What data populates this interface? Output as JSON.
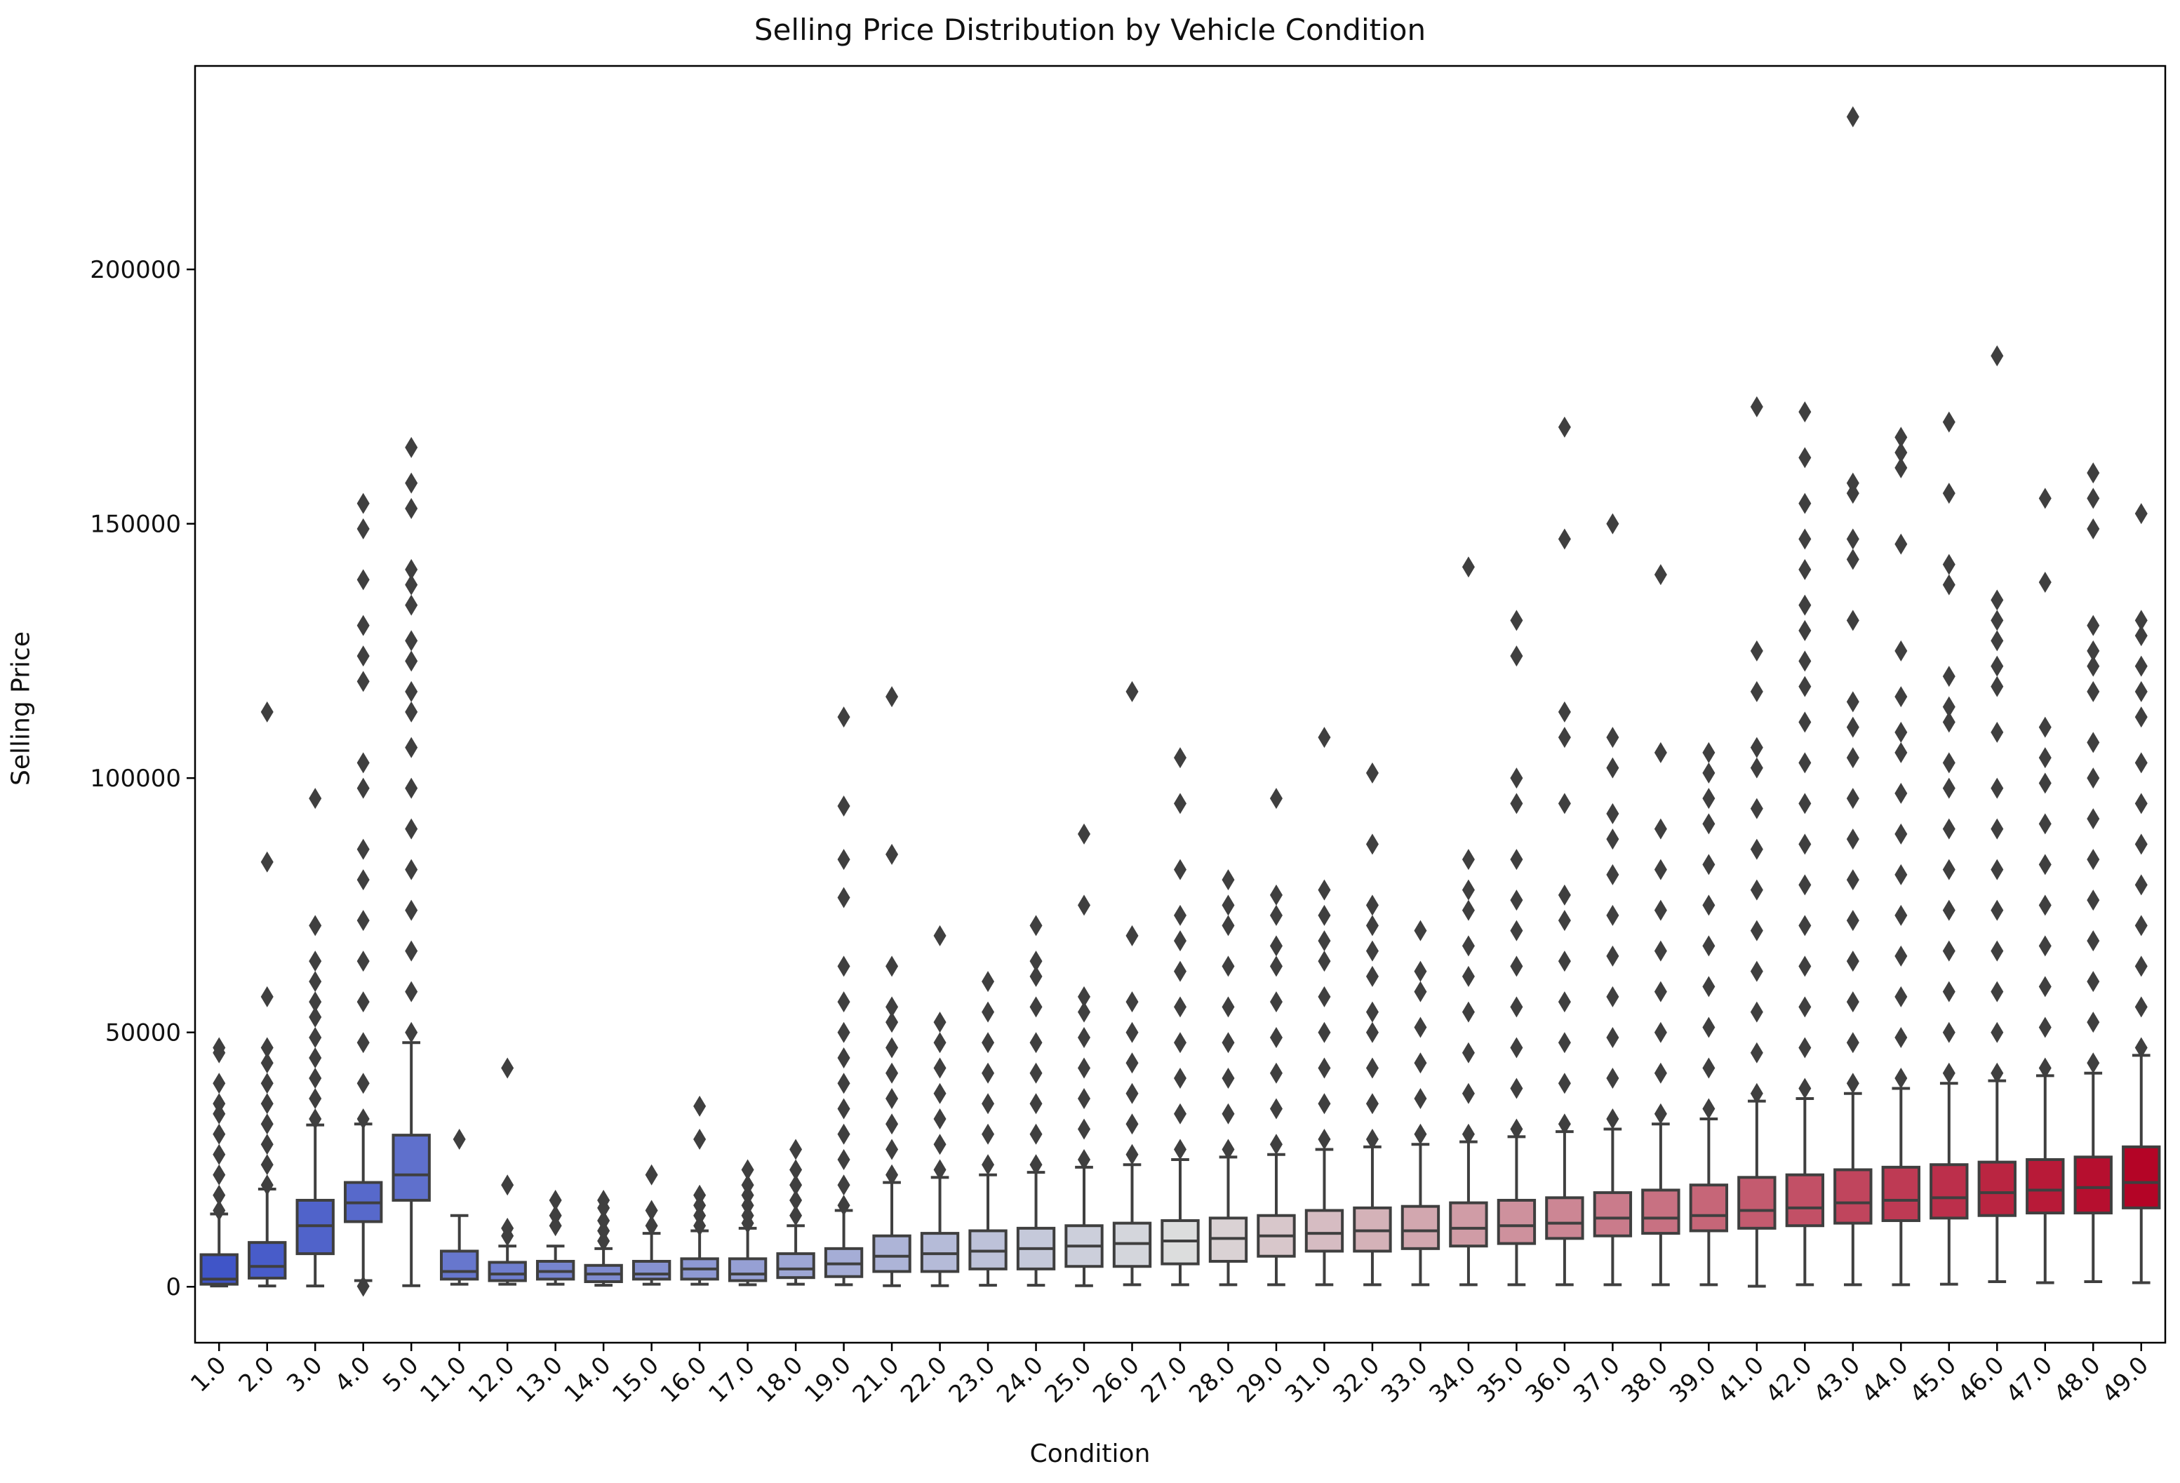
{
  "chart_data": {
    "type": "box",
    "title": "Selling Price Distribution by Vehicle Condition",
    "xlabel": "Condition",
    "ylabel": "Selling Price",
    "ylim": [
      -11000,
      240000
    ],
    "yticks": [
      0,
      50000,
      100000,
      150000,
      200000
    ],
    "ytick_labels": [
      "0",
      "50000",
      "100000",
      "150000",
      "200000"
    ],
    "grid": false,
    "palette": "coolwarm",
    "colors": {
      "low": "#4055c8",
      "mid": "#dcdddd",
      "high": "#b40426",
      "box_edge": "#3f3f3f"
    },
    "categories": [
      "1.0",
      "2.0",
      "3.0",
      "4.0",
      "5.0",
      "11.0",
      "12.0",
      "13.0",
      "14.0",
      "15.0",
      "16.0",
      "17.0",
      "18.0",
      "19.0",
      "21.0",
      "22.0",
      "23.0",
      "24.0",
      "25.0",
      "26.0",
      "27.0",
      "28.0",
      "29.0",
      "31.0",
      "32.0",
      "33.0",
      "34.0",
      "35.0",
      "36.0",
      "37.0",
      "38.0",
      "39.0",
      "41.0",
      "42.0",
      "43.0",
      "44.0",
      "45.0",
      "46.0",
      "47.0",
      "48.0",
      "49.0"
    ],
    "boxes": [
      {
        "q1": 500,
        "median": 1500,
        "q3": 6300,
        "whisker_low": 150,
        "whisker_high": 14300,
        "outliers": [
          15000,
          18000,
          22000,
          26000,
          30000,
          34000,
          36000,
          40000,
          46000,
          47000
        ]
      },
      {
        "q1": 1700,
        "median": 4000,
        "q3": 8700,
        "whisker_low": 150,
        "whisker_high": 19200,
        "outliers": [
          20000,
          24000,
          28000,
          32000,
          36000,
          40000,
          44000,
          47000,
          57000,
          83500,
          113000
        ]
      },
      {
        "q1": 6500,
        "median": 12000,
        "q3": 17000,
        "whisker_low": 150,
        "whisker_high": 31800,
        "outliers": [
          33000,
          37000,
          41000,
          45000,
          49000,
          53000,
          56000,
          60000,
          64000,
          71000,
          96000
        ]
      },
      {
        "q1": 12800,
        "median": 16500,
        "q3": 20500,
        "whisker_low": 1200,
        "whisker_high": 32000,
        "outliers": [
          100,
          33000,
          40000,
          48000,
          56000,
          64000,
          72000,
          80000,
          86000,
          98000,
          103000,
          119000,
          124000,
          130000,
          139000,
          149000,
          154000
        ]
      },
      {
        "q1": 17000,
        "median": 22000,
        "q3": 29800,
        "whisker_low": 200,
        "whisker_high": 48000,
        "outliers": [
          50000,
          58000,
          66000,
          74000,
          82000,
          90000,
          98000,
          106000,
          113000,
          117000,
          123000,
          127000,
          134000,
          138000,
          141000,
          153000,
          158000,
          165000
        ]
      },
      {
        "q1": 1500,
        "median": 3000,
        "q3": 7000,
        "whisker_low": 500,
        "whisker_high": 14000,
        "outliers": [
          29000
        ]
      },
      {
        "q1": 1200,
        "median": 2500,
        "q3": 4800,
        "whisker_low": 500,
        "whisker_high": 8000,
        "outliers": [
          10000,
          11500,
          20000,
          43000
        ]
      },
      {
        "q1": 1500,
        "median": 3000,
        "q3": 5000,
        "whisker_low": 500,
        "whisker_high": 8000,
        "outliers": [
          12000,
          14000,
          17000
        ]
      },
      {
        "q1": 1000,
        "median": 2500,
        "q3": 4200,
        "whisker_low": 300,
        "whisker_high": 7500,
        "outliers": [
          9000,
          11000,
          13000,
          15500,
          17000
        ]
      },
      {
        "q1": 1500,
        "median": 2500,
        "q3": 5000,
        "whisker_low": 500,
        "whisker_high": 10500,
        "outliers": [
          12000,
          15000,
          22000
        ]
      },
      {
        "q1": 1500,
        "median": 3500,
        "q3": 5500,
        "whisker_low": 500,
        "whisker_high": 11000,
        "outliers": [
          12000,
          14000,
          16000,
          18000,
          29000,
          35500
        ]
      },
      {
        "q1": 1200,
        "median": 2500,
        "q3": 5500,
        "whisker_low": 400,
        "whisker_high": 11500,
        "outliers": [
          12500,
          14000,
          16000,
          18000,
          20000,
          23000
        ]
      },
      {
        "q1": 1800,
        "median": 3500,
        "q3": 6500,
        "whisker_low": 500,
        "whisker_high": 12000,
        "outliers": [
          14000,
          17000,
          20000,
          23000,
          27000
        ]
      },
      {
        "q1": 2000,
        "median": 4500,
        "q3": 7500,
        "whisker_low": 400,
        "whisker_high": 15000,
        "outliers": [
          16000,
          20000,
          25000,
          30000,
          35000,
          40000,
          45000,
          50000,
          56000,
          63000,
          76500,
          84000,
          94500,
          112000
        ]
      },
      {
        "q1": 3000,
        "median": 6000,
        "q3": 10000,
        "whisker_low": 200,
        "whisker_high": 20500,
        "outliers": [
          22000,
          27000,
          32000,
          37000,
          42000,
          47000,
          52000,
          55000,
          63000,
          85000,
          116000
        ]
      },
      {
        "q1": 3000,
        "median": 6500,
        "q3": 10500,
        "whisker_low": 200,
        "whisker_high": 21500,
        "outliers": [
          23000,
          28000,
          33000,
          38000,
          43000,
          48000,
          52000,
          69000
        ]
      },
      {
        "q1": 3500,
        "median": 7000,
        "q3": 11000,
        "whisker_low": 300,
        "whisker_high": 22000,
        "outliers": [
          24000,
          30000,
          36000,
          42000,
          48000,
          54000,
          60000
        ]
      },
      {
        "q1": 3500,
        "median": 7500,
        "q3": 11500,
        "whisker_low": 300,
        "whisker_high": 22500,
        "outliers": [
          24000,
          30000,
          36000,
          42000,
          48000,
          55000,
          61000,
          64000,
          71000
        ]
      },
      {
        "q1": 4000,
        "median": 8000,
        "q3": 12000,
        "whisker_low": 200,
        "whisker_high": 23500,
        "outliers": [
          25000,
          31000,
          37000,
          43000,
          49000,
          54000,
          57000,
          75000,
          89000
        ]
      },
      {
        "q1": 4000,
        "median": 8500,
        "q3": 12500,
        "whisker_low": 400,
        "whisker_high": 24000,
        "outliers": [
          26000,
          32000,
          38000,
          44000,
          50000,
          56000,
          69000,
          117000
        ]
      },
      {
        "q1": 4500,
        "median": 9000,
        "q3": 13000,
        "whisker_low": 400,
        "whisker_high": 25000,
        "outliers": [
          27000,
          34000,
          41000,
          48000,
          55000,
          62000,
          68000,
          73000,
          82000,
          95000,
          104000
        ]
      },
      {
        "q1": 5000,
        "median": 9500,
        "q3": 13500,
        "whisker_low": 400,
        "whisker_high": 25500,
        "outliers": [
          27000,
          34000,
          41000,
          48000,
          55000,
          63000,
          71000,
          75000,
          80000
        ]
      },
      {
        "q1": 6000,
        "median": 10000,
        "q3": 14000,
        "whisker_low": 400,
        "whisker_high": 26000,
        "outliers": [
          28000,
          35000,
          42000,
          49000,
          56000,
          63000,
          67000,
          73000,
          77000,
          96000
        ]
      },
      {
        "q1": 7000,
        "median": 10500,
        "q3": 15000,
        "whisker_low": 400,
        "whisker_high": 27000,
        "outliers": [
          29000,
          36000,
          43000,
          50000,
          57000,
          64000,
          68000,
          73000,
          78000,
          108000
        ]
      },
      {
        "q1": 7000,
        "median": 11000,
        "q3": 15500,
        "whisker_low": 400,
        "whisker_high": 27500,
        "outliers": [
          29000,
          36000,
          43000,
          50000,
          54000,
          61000,
          66000,
          71000,
          75000,
          87000,
          101000
        ]
      },
      {
        "q1": 7500,
        "median": 11000,
        "q3": 15800,
        "whisker_low": 400,
        "whisker_high": 28000,
        "outliers": [
          30000,
          37000,
          44000,
          51000,
          58000,
          62000,
          70000
        ]
      },
      {
        "q1": 8000,
        "median": 11500,
        "q3": 16500,
        "whisker_low": 400,
        "whisker_high": 28500,
        "outliers": [
          30000,
          38000,
          46000,
          54000,
          61000,
          67000,
          74000,
          78000,
          84000,
          141500
        ]
      },
      {
        "q1": 8500,
        "median": 12000,
        "q3": 17000,
        "whisker_low": 400,
        "whisker_high": 29500,
        "outliers": [
          31000,
          39000,
          47000,
          55000,
          63000,
          70000,
          76000,
          84000,
          95000,
          100000,
          124000,
          131000
        ]
      },
      {
        "q1": 9500,
        "median": 12500,
        "q3": 17500,
        "whisker_low": 400,
        "whisker_high": 30500,
        "outliers": [
          32000,
          40000,
          48000,
          56000,
          64000,
          72000,
          77000,
          95000,
          108000,
          113000,
          147000,
          169000
        ]
      },
      {
        "q1": 10000,
        "median": 13500,
        "q3": 18500,
        "whisker_low": 400,
        "whisker_high": 31000,
        "outliers": [
          33000,
          41000,
          49000,
          57000,
          65000,
          73000,
          81000,
          88000,
          93000,
          102000,
          108000,
          150000
        ]
      },
      {
        "q1": 10500,
        "median": 13500,
        "q3": 19000,
        "whisker_low": 400,
        "whisker_high": 32000,
        "outliers": [
          34000,
          42000,
          50000,
          58000,
          66000,
          74000,
          82000,
          90000,
          105000,
          140000
        ]
      },
      {
        "q1": 11000,
        "median": 14000,
        "q3": 20000,
        "whisker_low": 400,
        "whisker_high": 33000,
        "outliers": [
          35000,
          43000,
          51000,
          59000,
          67000,
          75000,
          83000,
          91000,
          96000,
          101000,
          105000
        ]
      },
      {
        "q1": 11500,
        "median": 15000,
        "q3": 21500,
        "whisker_low": 100,
        "whisker_high": 36500,
        "outliers": [
          38000,
          46000,
          54000,
          62000,
          70000,
          78000,
          86000,
          94000,
          102000,
          106000,
          117000,
          125000,
          173000
        ]
      },
      {
        "q1": 12000,
        "median": 15500,
        "q3": 22000,
        "whisker_low": 400,
        "whisker_high": 37000,
        "outliers": [
          39000,
          47000,
          55000,
          63000,
          71000,
          79000,
          87000,
          95000,
          103000,
          111000,
          118000,
          123000,
          129000,
          134000,
          141000,
          147000,
          154000,
          163000,
          172000
        ]
      },
      {
        "q1": 12500,
        "median": 16500,
        "q3": 23000,
        "whisker_low": 400,
        "whisker_high": 38000,
        "outliers": [
          40000,
          48000,
          56000,
          64000,
          72000,
          80000,
          88000,
          96000,
          104000,
          110000,
          115000,
          131000,
          143000,
          147000,
          156000,
          158000,
          230000
        ]
      },
      {
        "q1": 13000,
        "median": 17000,
        "q3": 23500,
        "whisker_low": 400,
        "whisker_high": 39000,
        "outliers": [
          41000,
          49000,
          57000,
          65000,
          73000,
          81000,
          89000,
          97000,
          105000,
          109000,
          116000,
          125000,
          146000,
          161000,
          164000,
          167000
        ]
      },
      {
        "q1": 13500,
        "median": 17500,
        "q3": 24000,
        "whisker_low": 500,
        "whisker_high": 40000,
        "outliers": [
          42000,
          50000,
          58000,
          66000,
          74000,
          82000,
          90000,
          98000,
          103000,
          111000,
          114000,
          120000,
          138000,
          142000,
          156000,
          170000
        ]
      },
      {
        "q1": 14000,
        "median": 18500,
        "q3": 24500,
        "whisker_low": 1000,
        "whisker_high": 40500,
        "outliers": [
          42000,
          50000,
          58000,
          66000,
          74000,
          82000,
          90000,
          98000,
          109000,
          118000,
          122000,
          127000,
          131000,
          135000,
          183000
        ]
      },
      {
        "q1": 14500,
        "median": 19000,
        "q3": 25000,
        "whisker_low": 800,
        "whisker_high": 41500,
        "outliers": [
          43000,
          51000,
          59000,
          67000,
          75000,
          83000,
          91000,
          99000,
          104000,
          110000,
          138500,
          155000
        ]
      },
      {
        "q1": 14500,
        "median": 19500,
        "q3": 25500,
        "whisker_low": 1000,
        "whisker_high": 42000,
        "outliers": [
          44000,
          52000,
          60000,
          68000,
          76000,
          84000,
          92000,
          100000,
          107000,
          117000,
          122000,
          125000,
          130000,
          149000,
          155000,
          160000
        ]
      },
      {
        "q1": 15500,
        "median": 20500,
        "q3": 27500,
        "whisker_low": 800,
        "whisker_high": 45500,
        "outliers": [
          47000,
          55000,
          63000,
          71000,
          79000,
          87000,
          95000,
          103000,
          112000,
          117000,
          122000,
          128000,
          131000,
          152000
        ]
      }
    ]
  }
}
